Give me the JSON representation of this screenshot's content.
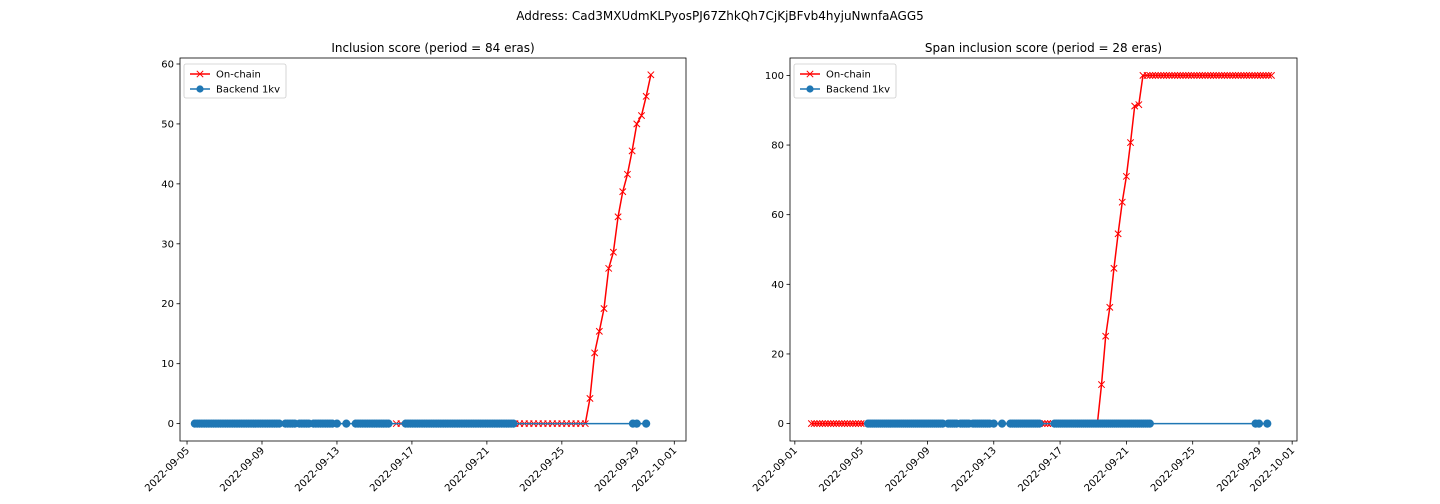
{
  "figure": {
    "suptitle": "Address: Cad3MXUdmKLPyosPJ67ZhkQh7CjKjBFvb4hyjuNwnfaAGG5"
  },
  "chart_data": [
    {
      "type": "line",
      "title": "Inclusion score (period = 84 eras)",
      "xlabel": "",
      "ylabel": "",
      "x_ticks": [
        "2022-09-05",
        "2022-09-09",
        "2022-09-13",
        "2022-09-17",
        "2022-09-21",
        "2022-09-25",
        "2022-09-29",
        "2022-10-01"
      ],
      "y_ticks": [
        0,
        10,
        20,
        30,
        40,
        50,
        60
      ],
      "xlim": [
        "2022-09-04T15:00",
        "2022-10-01T15:00"
      ],
      "ylim": [
        -2.9,
        61
      ],
      "legend": "upper-left",
      "grid": false,
      "series": [
        {
          "name": "On-chain",
          "color": "#ff0000",
          "marker": "x",
          "points": [
            [
              "2022-09-16T04:00",
              0
            ],
            [
              "2022-09-16T10:00",
              0
            ],
            [
              "2022-09-22T12:00",
              0
            ],
            [
              "2022-09-22T18:00",
              0
            ],
            [
              "2022-09-23T00:00",
              0
            ],
            [
              "2022-09-23T06:00",
              0
            ],
            [
              "2022-09-23T12:00",
              0
            ],
            [
              "2022-09-23T18:00",
              0
            ],
            [
              "2022-09-24T00:00",
              0
            ],
            [
              "2022-09-24T06:00",
              0
            ],
            [
              "2022-09-24T12:00",
              0
            ],
            [
              "2022-09-24T18:00",
              0
            ],
            [
              "2022-09-25T00:00",
              0
            ],
            [
              "2022-09-25T06:00",
              0
            ],
            [
              "2022-09-25T12:00",
              0
            ],
            [
              "2022-09-25T18:00",
              0
            ],
            [
              "2022-09-26T00:00",
              0
            ],
            [
              "2022-09-26T06:00",
              0
            ],
            [
              "2022-09-26T12:00",
              4.2
            ],
            [
              "2022-09-26T18:00",
              11.8
            ],
            [
              "2022-09-27T00:00",
              15.4
            ],
            [
              "2022-09-27T06:00",
              19.2
            ],
            [
              "2022-09-27T12:00",
              25.9
            ],
            [
              "2022-09-27T18:00",
              28.6
            ],
            [
              "2022-09-28T00:00",
              34.5
            ],
            [
              "2022-09-28T06:00",
              38.7
            ],
            [
              "2022-09-28T12:00",
              41.6
            ],
            [
              "2022-09-28T18:00",
              45.5
            ],
            [
              "2022-09-29T00:00",
              50.0
            ],
            [
              "2022-09-29T06:00",
              51.4
            ],
            [
              "2022-09-29T12:00",
              54.6
            ],
            [
              "2022-09-29T18:00",
              58.2
            ]
          ]
        },
        {
          "name": "Backend 1kv",
          "color": "#1f77b4",
          "marker": "o",
          "dense_ranges": [
            [
              "2022-09-05T10:00",
              "2022-09-10T00:00"
            ],
            [
              "2022-09-10T06:00",
              "2022-09-10T18:00"
            ],
            [
              "2022-09-11T00:00",
              "2022-09-11T12:00"
            ],
            [
              "2022-09-11T18:00",
              "2022-09-12T18:00"
            ],
            [
              "2022-09-14T00:00",
              "2022-09-15T18:00"
            ],
            [
              "2022-09-16T16:00",
              "2022-09-22T12:00"
            ]
          ],
          "points": [
            [
              "2022-09-13T00:00",
              0
            ],
            [
              "2022-09-13T12:00",
              0
            ],
            [
              "2022-09-28T19:00",
              0
            ],
            [
              "2022-09-29T00:00",
              0
            ],
            [
              "2022-09-29T12:00",
              0
            ]
          ],
          "y_value": 0
        }
      ]
    },
    {
      "type": "line",
      "title": "Span inclusion score (period = 28 eras)",
      "xlabel": "",
      "ylabel": "",
      "x_ticks": [
        "2022-09-01",
        "2022-09-05",
        "2022-09-09",
        "2022-09-13",
        "2022-09-17",
        "2022-09-21",
        "2022-09-25",
        "2022-09-29",
        "2022-10-01"
      ],
      "y_ticks": [
        0,
        20,
        40,
        60,
        80,
        100
      ],
      "xlim": [
        "2022-08-31T17:00",
        "2022-10-01T07:00"
      ],
      "ylim": [
        -5,
        105
      ],
      "legend": "upper-left",
      "grid": false,
      "series": [
        {
          "name": "On-chain",
          "color": "#ff0000",
          "marker": "x",
          "flat_ranges": [
            [
              "2022-09-02T00:00",
              "2022-09-05T06:00",
              0,
              6
            ],
            [
              "2022-09-15T18:00",
              "2022-09-19T06:00",
              0,
              6
            ],
            [
              "2022-09-22T06:00",
              "2022-09-29T18:00",
              100,
              6
            ]
          ],
          "points": [
            [
              "2022-09-19T12:00",
              11.2
            ],
            [
              "2022-09-19T18:00",
              25.1
            ],
            [
              "2022-09-20T00:00",
              33.4
            ],
            [
              "2022-09-20T06:00",
              44.6
            ],
            [
              "2022-09-20T12:00",
              54.5
            ],
            [
              "2022-09-20T18:00",
              63.6
            ],
            [
              "2022-09-21T00:00",
              71.0
            ],
            [
              "2022-09-21T06:00",
              80.7
            ],
            [
              "2022-09-21T12:00",
              91.2
            ],
            [
              "2022-09-21T18:00",
              91.6
            ],
            [
              "2022-09-22T00:00",
              100
            ]
          ]
        },
        {
          "name": "Backend 1kv",
          "color": "#1f77b4",
          "marker": "o",
          "dense_ranges": [
            [
              "2022-09-05T10:00",
              "2022-09-10T00:00"
            ],
            [
              "2022-09-10T06:00",
              "2022-09-10T18:00"
            ],
            [
              "2022-09-11T00:00",
              "2022-09-11T12:00"
            ],
            [
              "2022-09-11T18:00",
              "2022-09-12T18:00"
            ],
            [
              "2022-09-14T00:00",
              "2022-09-15T18:00"
            ],
            [
              "2022-09-16T16:00",
              "2022-09-22T12:00"
            ]
          ],
          "points": [
            [
              "2022-09-13T00:00",
              0
            ],
            [
              "2022-09-13T12:00",
              0
            ],
            [
              "2022-09-28T19:00",
              0
            ],
            [
              "2022-09-29T00:00",
              0
            ],
            [
              "2022-09-29T12:00",
              0
            ]
          ],
          "y_value": 0
        }
      ]
    }
  ]
}
